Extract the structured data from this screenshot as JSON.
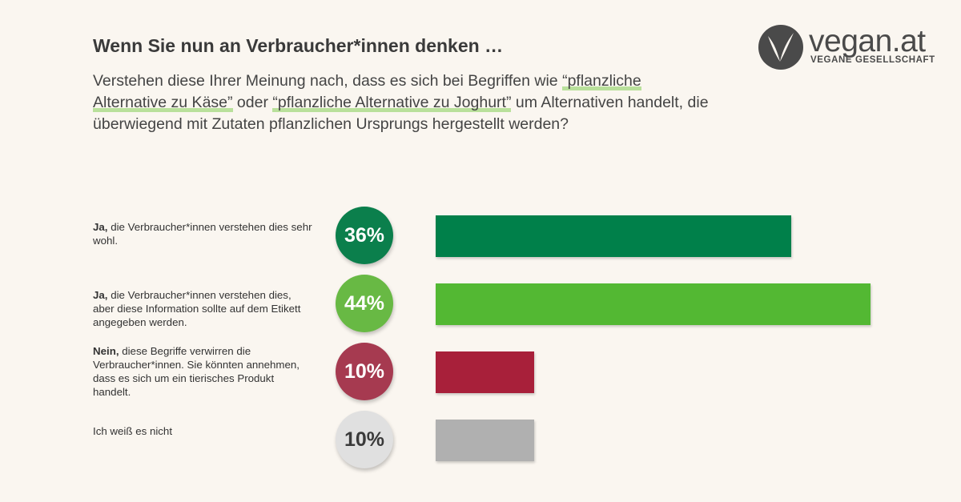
{
  "heading": "Wenn Sie nun an Verbraucher*innen denken …",
  "question": {
    "part1": "Verstehen diese Ihrer Meinung nach, dass es sich bei Begriffen wie ",
    "highlight1": "“pflanzliche Alternative zu Käse”",
    "part2": " oder ",
    "highlight2": "“pflanzliche Alternative zu Joghurt”",
    "part3": " um Alternativen handelt, die überwiegend mit Zutaten pflanzlichen Ursprungs hergestellt werden?"
  },
  "logo": {
    "wordmark": "vegan.at",
    "tagline": "VEGANE GESELLSCHAFT",
    "icon": "v-leaf-icon"
  },
  "chart_data": {
    "type": "bar",
    "orientation": "horizontal",
    "unit": "%",
    "xlim": [
      0,
      44
    ],
    "categories": [
      {
        "bold": "Ja,",
        "rest": " die Verbraucher*innen verstehen dies sehr wohl."
      },
      {
        "bold": "Ja,",
        "rest": " die Verbraucher*innen verstehen dies, aber diese Information sollte auf dem Etikett angegeben werden."
      },
      {
        "bold": "Nein,",
        "rest": " diese Begriffe verwirren die Verbraucher*innen. Sie könnten an­nehmen, dass es sich um ein tierisches Produkt handelt."
      },
      {
        "bold": "",
        "rest": "Ich weiß es nicht"
      }
    ],
    "values": [
      36,
      44,
      10,
      10
    ],
    "value_labels": [
      "36%",
      "44%",
      "10%",
      "10%"
    ],
    "colors": [
      "#00804a",
      "#53b833",
      "#a8203a",
      "#b0b0b0"
    ],
    "circle_colors": [
      "#0b7f4c",
      "#68b944",
      "#a63a50",
      "#e0e0e0"
    ],
    "label_colors": [
      "#ffffff",
      "#ffffff",
      "#ffffff",
      "#3a3a3a"
    ]
  }
}
